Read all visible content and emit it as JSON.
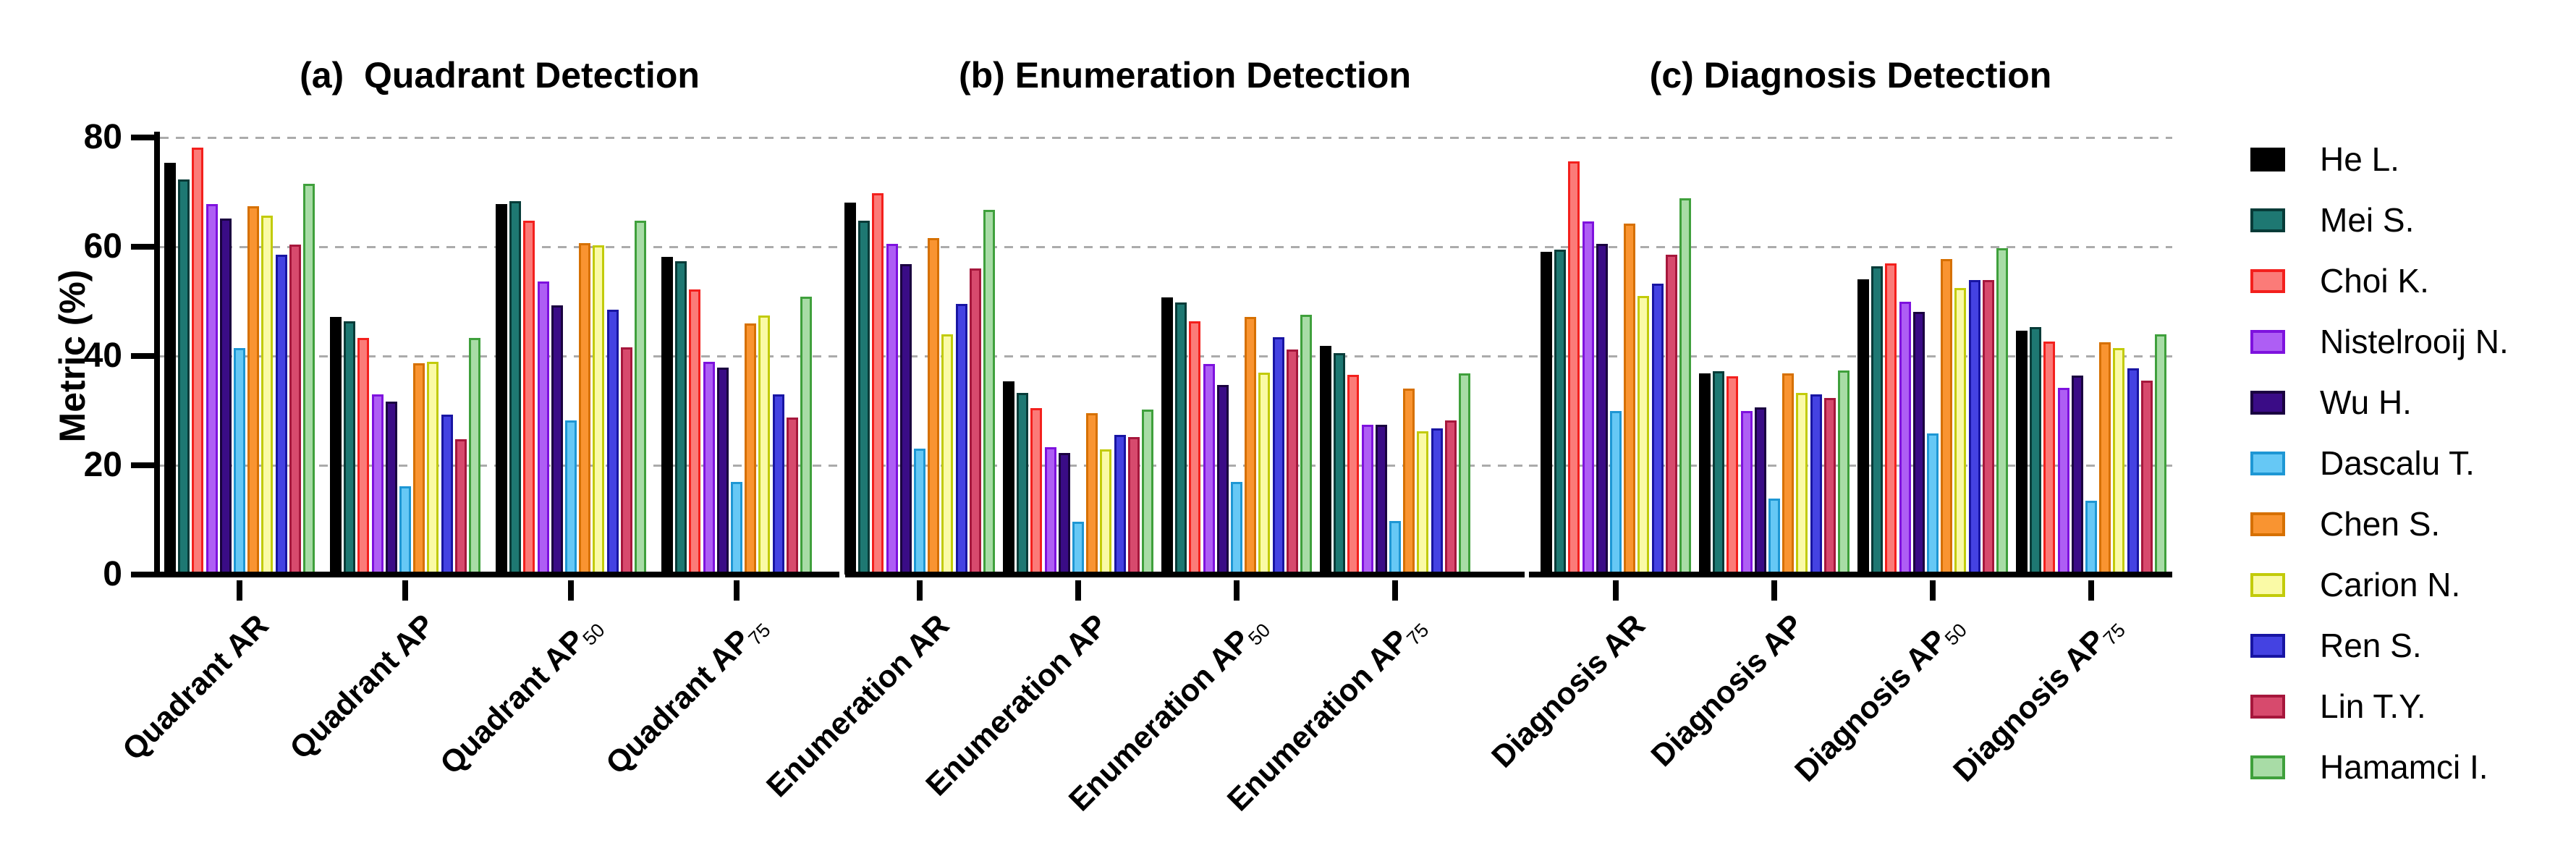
{
  "chart_data": {
    "type": "bar",
    "variant": "grouped-bar, 3 side-by-side panels sharing one y-axis",
    "ylabel": "Metric (%)",
    "ylim": [
      0,
      80
    ],
    "yticks": [
      0,
      20,
      40,
      60,
      80
    ],
    "grid": "horizontal dashed gray lines at 20, 40, 60, 80",
    "legend_position": "right",
    "series": [
      {
        "key": "he",
        "name": "He L.",
        "fill": "#000000",
        "edge": "#000000"
      },
      {
        "key": "mei",
        "name": "Mei S.",
        "fill": "#1E7872",
        "edge": "#073B38"
      },
      {
        "key": "choi",
        "name": "Choi K.",
        "fill": "#FB7B78",
        "edge": "#F3201D"
      },
      {
        "key": "nist",
        "name": "Nistelrooij N.",
        "fill": "#AE5EF4",
        "edge": "#7E12DE"
      },
      {
        "key": "wu",
        "name": "Wu H.",
        "fill": "#3A0C86",
        "edge": "#1A0240"
      },
      {
        "key": "dascalu",
        "name": "Dascalu T.",
        "fill": "#66C8F5",
        "edge": "#1E97D4"
      },
      {
        "key": "chen",
        "name": "Chen S.",
        "fill": "#F99431",
        "edge": "#D67000"
      },
      {
        "key": "carion",
        "name": "Carion N.",
        "fill": "#FAFAA6",
        "edge": "#C2CB0A"
      },
      {
        "key": "ren",
        "name": "Ren S.",
        "fill": "#4442E2",
        "edge": "#1815A3"
      },
      {
        "key": "lin",
        "name": "Lin T.Y.",
        "fill": "#D74A6D",
        "edge": "#A6173C"
      },
      {
        "key": "hamamci",
        "name": "Hamamci I.",
        "fill": "#A8DCA6",
        "edge": "#3FA03C"
      }
    ],
    "panels": [
      {
        "id": "a",
        "title": "(a)  Quadrant Detection",
        "categories": [
          {
            "key": "ar",
            "base": "Quadrant AR",
            "sub": ""
          },
          {
            "key": "ap",
            "base": "Quadrant AP",
            "sub": ""
          },
          {
            "key": "ap50",
            "base": "Quadrant AP",
            "sub": "50"
          },
          {
            "key": "ap75",
            "base": "Quadrant AP",
            "sub": "75"
          }
        ],
        "values_by_category": [
          [
            75.3,
            72.3,
            78.2,
            67.8,
            65.2,
            41.5,
            67.4,
            65.7,
            58.6,
            60.4,
            71.5
          ],
          [
            47.2,
            46.3,
            43.3,
            33.0,
            31.7,
            16.1,
            38.7,
            38.9,
            29.3,
            24.8,
            43.3
          ],
          [
            67.8,
            68.3,
            64.8,
            53.6,
            49.3,
            28.2,
            60.6,
            60.3,
            48.5,
            41.6,
            64.8
          ],
          [
            58.2,
            57.4,
            52.2,
            38.9,
            37.9,
            17.0,
            46.0,
            47.4,
            33.0,
            28.7,
            50.8
          ]
        ]
      },
      {
        "id": "b",
        "title": "(b) Enumeration Detection",
        "categories": [
          {
            "key": "ar",
            "base": "Enumeration AR",
            "sub": ""
          },
          {
            "key": "ap",
            "base": "Enumeration AP",
            "sub": ""
          },
          {
            "key": "ap50",
            "base": "Enumeration AP",
            "sub": "50"
          },
          {
            "key": "ap75",
            "base": "Enumeration AP",
            "sub": "75"
          }
        ],
        "values_by_category": [
          [
            68.1,
            64.8,
            69.8,
            60.5,
            56.8,
            23.1,
            61.6,
            44.0,
            49.5,
            56.0,
            66.8
          ],
          [
            35.3,
            33.3,
            30.4,
            23.3,
            22.3,
            9.7,
            29.6,
            22.9,
            25.5,
            25.2,
            30.2
          ],
          [
            50.7,
            49.8,
            46.3,
            38.6,
            34.7,
            17.0,
            47.2,
            37.0,
            43.4,
            41.2,
            47.5
          ],
          [
            41.9,
            40.5,
            36.6,
            27.4,
            27.4,
            9.8,
            34.1,
            26.2,
            26.7,
            28.2,
            36.8
          ]
        ]
      },
      {
        "id": "c",
        "title": "(c) Diagnosis Detection",
        "categories": [
          {
            "key": "ar",
            "base": "Diagnosis AR",
            "sub": ""
          },
          {
            "key": "ap",
            "base": "Diagnosis AP",
            "sub": ""
          },
          {
            "key": "ap50",
            "base": "Diagnosis AP",
            "sub": "50"
          },
          {
            "key": "ap75",
            "base": "Diagnosis AP",
            "sub": "75"
          }
        ],
        "values_by_category": [
          [
            59.1,
            59.5,
            75.6,
            64.6,
            60.5,
            30.0,
            64.2,
            51.0,
            53.2,
            58.5,
            68.9
          ],
          [
            36.8,
            37.2,
            36.3,
            29.9,
            30.6,
            13.9,
            36.8,
            33.2,
            33.0,
            32.3,
            37.4
          ],
          [
            54.0,
            56.4,
            56.9,
            50.0,
            48.1,
            25.8,
            57.8,
            52.5,
            53.9,
            53.9,
            59.8
          ],
          [
            44.7,
            45.3,
            42.6,
            34.2,
            36.4,
            13.5,
            42.5,
            41.5,
            37.8,
            35.5,
            44.0
          ]
        ]
      }
    ]
  }
}
